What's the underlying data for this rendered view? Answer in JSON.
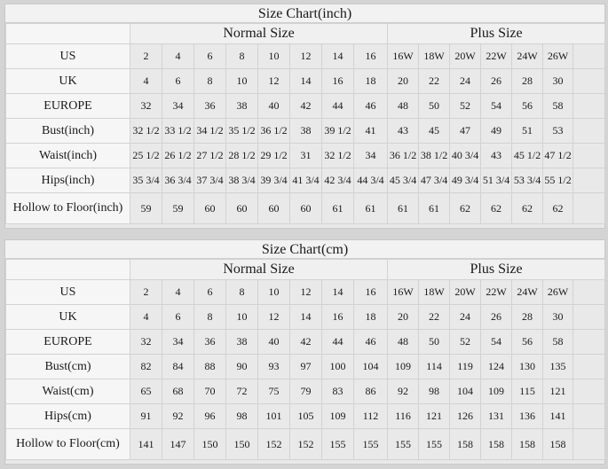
{
  "tables": [
    {
      "title": "Size Chart(inch)",
      "groups": {
        "normal": "Normal Size",
        "plus": "Plus Size"
      },
      "rows": [
        {
          "label": "US",
          "values": [
            "2",
            "4",
            "6",
            "8",
            "10",
            "12",
            "14",
            "16",
            "16W",
            "18W",
            "20W",
            "22W",
            "24W",
            "26W"
          ]
        },
        {
          "label": "UK",
          "values": [
            "4",
            "6",
            "8",
            "10",
            "12",
            "14",
            "16",
            "18",
            "20",
            "22",
            "24",
            "26",
            "28",
            "30"
          ]
        },
        {
          "label": "EUROPE",
          "values": [
            "32",
            "34",
            "36",
            "38",
            "40",
            "42",
            "44",
            "46",
            "48",
            "50",
            "52",
            "54",
            "56",
            "58"
          ]
        },
        {
          "label": "Bust(inch)",
          "values": [
            "32 1/2",
            "33 1/2",
            "34 1/2",
            "35 1/2",
            "36 1/2",
            "38",
            "39 1/2",
            "41",
            "43",
            "45",
            "47",
            "49",
            "51",
            "53"
          ]
        },
        {
          "label": "Waist(inch)",
          "values": [
            "25 1/2",
            "26 1/2",
            "27 1/2",
            "28 1/2",
            "29 1/2",
            "31",
            "32 1/2",
            "34",
            "36 1/2",
            "38 1/2",
            "40 3/4",
            "43",
            "45 1/2",
            "47 1/2"
          ]
        },
        {
          "label": "Hips(inch)",
          "values": [
            "35 3/4",
            "36 3/4",
            "37 3/4",
            "38 3/4",
            "39 3/4",
            "41 3/4",
            "42 3/4",
            "44 3/4",
            "45 3/4",
            "47 3/4",
            "49 3/4",
            "51 3/4",
            "53 3/4",
            "55 1/2"
          ]
        },
        {
          "label": "Hollow to Floor(inch)",
          "values": [
            "59",
            "59",
            "60",
            "60",
            "60",
            "60",
            "61",
            "61",
            "61",
            "61",
            "62",
            "62",
            "62",
            "62"
          ]
        }
      ]
    },
    {
      "title": "Size Chart(cm)",
      "groups": {
        "normal": "Normal Size",
        "plus": "Plus Size"
      },
      "rows": [
        {
          "label": "US",
          "values": [
            "2",
            "4",
            "6",
            "8",
            "10",
            "12",
            "14",
            "16",
            "16W",
            "18W",
            "20W",
            "22W",
            "24W",
            "26W"
          ]
        },
        {
          "label": "UK",
          "values": [
            "4",
            "6",
            "8",
            "10",
            "12",
            "14",
            "16",
            "18",
            "20",
            "22",
            "24",
            "26",
            "28",
            "30"
          ]
        },
        {
          "label": "EUROPE",
          "values": [
            "32",
            "34",
            "36",
            "38",
            "40",
            "42",
            "44",
            "46",
            "48",
            "50",
            "52",
            "54",
            "56",
            "58"
          ]
        },
        {
          "label": "Bust(cm)",
          "values": [
            "82",
            "84",
            "88",
            "90",
            "93",
            "97",
            "100",
            "104",
            "109",
            "114",
            "119",
            "124",
            "130",
            "135"
          ]
        },
        {
          "label": "Waist(cm)",
          "values": [
            "65",
            "68",
            "70",
            "72",
            "75",
            "79",
            "83",
            "86",
            "92",
            "98",
            "104",
            "109",
            "115",
            "121"
          ]
        },
        {
          "label": "Hips(cm)",
          "values": [
            "91",
            "92",
            "96",
            "98",
            "101",
            "105",
            "109",
            "112",
            "116",
            "121",
            "126",
            "131",
            "136",
            "141"
          ]
        },
        {
          "label": "Hollow to Floor(cm)",
          "values": [
            "141",
            "147",
            "150",
            "150",
            "152",
            "152",
            "155",
            "155",
            "155",
            "155",
            "158",
            "158",
            "158",
            "158"
          ]
        }
      ]
    }
  ]
}
